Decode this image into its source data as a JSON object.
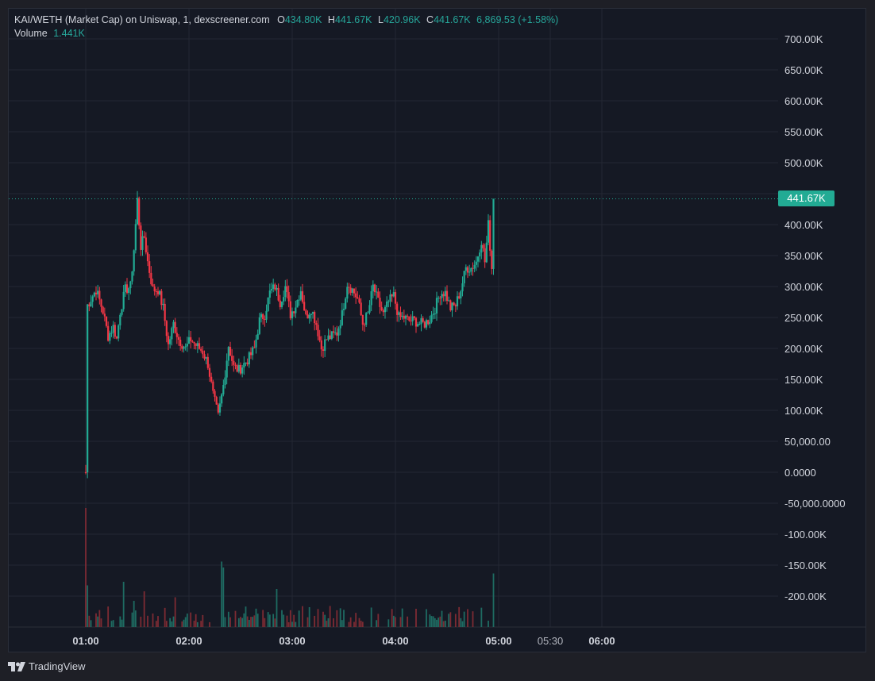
{
  "legend": {
    "title": "KAI/WETH (Market Cap) on Uniswap, 1, dexscreener.com",
    "o_label": "O",
    "o_value": "434.80K",
    "h_label": "H",
    "h_value": "441.67K",
    "l_label": "L",
    "l_value": "420.96K",
    "c_label": "C",
    "c_value": "441.67K",
    "change": "6,869.53 (+1.58%)",
    "volume_label": "Volume",
    "volume_value": "1.441K"
  },
  "price_badge": "441.67K",
  "footer": {
    "brand": "TradingView"
  },
  "colors": {
    "up": "#22ab94",
    "down": "#f23645",
    "vol_up": "#1e6b62",
    "vol_down": "#7d2b33",
    "grid": "#232733"
  },
  "chart_data": {
    "type": "candlestick",
    "y_ticks": [
      {
        "v": 700000,
        "label": "700.00K"
      },
      {
        "v": 650000,
        "label": "650.00K"
      },
      {
        "v": 600000,
        "label": "600.00K"
      },
      {
        "v": 550000,
        "label": "550.00K"
      },
      {
        "v": 500000,
        "label": "500.00K"
      },
      {
        "v": 450000,
        "label": "450.00K"
      },
      {
        "v": 400000,
        "label": "400.00K"
      },
      {
        "v": 350000,
        "label": "350.00K"
      },
      {
        "v": 300000,
        "label": "300.00K"
      },
      {
        "v": 250000,
        "label": "250.00K"
      },
      {
        "v": 200000,
        "label": "200.00K"
      },
      {
        "v": 150000,
        "label": "150.00K"
      },
      {
        "v": 100000,
        "label": "100.00K"
      },
      {
        "v": 50000,
        "label": "50,000.00"
      },
      {
        "v": 0,
        "label": "0.0000"
      },
      {
        "v": -50000,
        "label": "-50,000.0000"
      },
      {
        "v": -100000,
        "label": "-100.00K"
      },
      {
        "v": -150000,
        "label": "-150.00K"
      },
      {
        "v": -200000,
        "label": "-200.00K"
      }
    ],
    "ylim": [
      -250000,
      710000
    ],
    "x_ticks": [
      {
        "t": 60,
        "label": "01:00",
        "bold": true
      },
      {
        "t": 120,
        "label": "02:00",
        "bold": true
      },
      {
        "t": 180,
        "label": "03:00",
        "bold": true
      },
      {
        "t": 240,
        "label": "04:00",
        "bold": true
      },
      {
        "t": 300,
        "label": "05:00",
        "bold": true
      },
      {
        "t": 330,
        "label": "05:30",
        "bold": false
      },
      {
        "t": 360,
        "label": "06:00",
        "bold": true
      }
    ],
    "last_price": 441670,
    "price_anchors": [
      [
        60,
        0
      ],
      [
        61,
        270000
      ],
      [
        66,
        295000
      ],
      [
        70,
        260000
      ],
      [
        73,
        220000
      ],
      [
        76,
        235000
      ],
      [
        78,
        215000
      ],
      [
        80,
        260000
      ],
      [
        83,
        295000
      ],
      [
        86,
        300000
      ],
      [
        88,
        360000
      ],
      [
        90,
        440000
      ],
      [
        92,
        365000
      ],
      [
        94,
        380000
      ],
      [
        96,
        340000
      ],
      [
        99,
        295000
      ],
      [
        102,
        295000
      ],
      [
        105,
        265000
      ],
      [
        108,
        205000
      ],
      [
        111,
        240000
      ],
      [
        114,
        215000
      ],
      [
        118,
        200000
      ],
      [
        121,
        215000
      ],
      [
        124,
        205000
      ],
      [
        128,
        195000
      ],
      [
        131,
        175000
      ],
      [
        134,
        125000
      ],
      [
        137,
        90000
      ],
      [
        140,
        140000
      ],
      [
        143,
        205000
      ],
      [
        146,
        170000
      ],
      [
        149,
        165000
      ],
      [
        152,
        175000
      ],
      [
        155,
        185000
      ],
      [
        158,
        200000
      ],
      [
        161,
        245000
      ],
      [
        164,
        255000
      ],
      [
        167,
        290000
      ],
      [
        170,
        300000
      ],
      [
        173,
        275000
      ],
      [
        176,
        300000
      ],
      [
        179,
        255000
      ],
      [
        182,
        270000
      ],
      [
        185,
        295000
      ],
      [
        188,
        250000
      ],
      [
        191,
        265000
      ],
      [
        194,
        240000
      ],
      [
        197,
        200000
      ],
      [
        200,
        215000
      ],
      [
        203,
        220000
      ],
      [
        206,
        225000
      ],
      [
        209,
        255000
      ],
      [
        212,
        305000
      ],
      [
        215,
        295000
      ],
      [
        218,
        280000
      ],
      [
        221,
        240000
      ],
      [
        224,
        255000
      ],
      [
        227,
        300000
      ],
      [
        230,
        275000
      ],
      [
        233,
        255000
      ],
      [
        236,
        275000
      ],
      [
        239,
        285000
      ],
      [
        242,
        250000
      ],
      [
        245,
        250000
      ],
      [
        248,
        245000
      ],
      [
        251,
        245000
      ],
      [
        254,
        240000
      ],
      [
        257,
        240000
      ],
      [
        260,
        248000
      ],
      [
        263,
        265000
      ],
      [
        266,
        290000
      ],
      [
        269,
        290000
      ],
      [
        272,
        265000
      ],
      [
        275,
        270000
      ],
      [
        278,
        295000
      ],
      [
        281,
        330000
      ],
      [
        284,
        330000
      ],
      [
        287,
        340000
      ],
      [
        290,
        375000
      ],
      [
        292,
        340000
      ],
      [
        294,
        400000
      ],
      [
        296,
        330000
      ],
      [
        297,
        435000
      ]
    ],
    "volume_spikes": [
      {
        "t": 60,
        "v": 100
      },
      {
        "t": 61,
        "v": 35
      },
      {
        "t": 82,
        "v": 38
      },
      {
        "t": 88,
        "v": 22
      },
      {
        "t": 94,
        "v": 30
      },
      {
        "t": 112,
        "v": 25
      },
      {
        "t": 139,
        "v": 55
      },
      {
        "t": 140,
        "v": 50
      },
      {
        "t": 171,
        "v": 32
      },
      {
        "t": 297,
        "v": 45
      },
      {
        "t": 313,
        "v": 32
      }
    ]
  }
}
